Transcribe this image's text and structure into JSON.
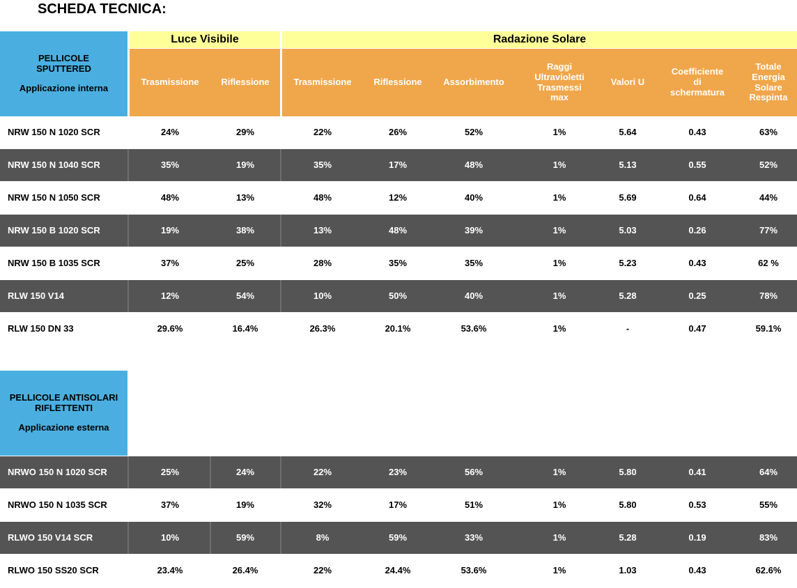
{
  "title": "SCHEDA TECNICA:",
  "section1": {
    "label_lines": [
      "PELLICOLE",
      "SPUTTERED"
    ],
    "sublabel": "Applicazione interna"
  },
  "groups": {
    "luce": "Luce Visibile",
    "radiazione": "Radazione Solare"
  },
  "columns": [
    [
      "Trasmissione"
    ],
    [
      "Riflessione"
    ],
    [
      "Trasmissione"
    ],
    [
      "Riflessione"
    ],
    [
      "Assorbimento"
    ],
    [
      "Raggi",
      "Ultravioletti",
      "Trasmessi",
      "max"
    ],
    [
      "Valori U"
    ],
    [
      "Coefficiente",
      "di",
      "schermatura"
    ],
    [
      "Totale",
      "Energia",
      "Solare",
      "Respinta"
    ]
  ],
  "rows1": [
    [
      "NRW 150 N 1020 SCR",
      "24%",
      "29%",
      "22%",
      "26%",
      "52%",
      "1%",
      "5.64",
      "0.43",
      "63%"
    ],
    [
      "NRW 150 N 1040 SCR",
      "35%",
      "19%",
      "35%",
      "17%",
      "48%",
      "1%",
      "5.13",
      "0.55",
      "52%"
    ],
    [
      "NRW 150 N 1050 SCR",
      "48%",
      "13%",
      "48%",
      "12%",
      "40%",
      "1%",
      "5.69",
      "0.64",
      "44%"
    ],
    [
      "NRW 150 B 1020 SCR",
      "19%",
      "38%",
      "13%",
      "48%",
      "39%",
      "1%",
      "5.03",
      "0.26",
      "77%"
    ],
    [
      "NRW 150 B 1035 SCR",
      "37%",
      "25%",
      "28%",
      "35%",
      "35%",
      "1%",
      "5.23",
      "0.43",
      "62 %"
    ],
    [
      "RLW 150 V14",
      "12%",
      "54%",
      "10%",
      "50%",
      "40%",
      "1%",
      "5.28",
      "0.25",
      "78%"
    ],
    [
      "RLW 150 DN 33",
      "29.6%",
      "16.4%",
      "26.3%",
      "20.1%",
      "53.6%",
      "1%",
      "-",
      "0.47",
      "59.1%"
    ]
  ],
  "section2": {
    "label_lines": [
      "PELLICOLE ANTISOLARI",
      "RIFLETTENTI"
    ],
    "sublabel": "Applicazione esterna"
  },
  "rows2": [
    [
      "NRWO 150 N 1020 SCR",
      "25%",
      "24%",
      "22%",
      "23%",
      "56%",
      "1%",
      "5.80",
      "0.41",
      "64%"
    ],
    [
      "NRWO 150 N 1035 SCR",
      "37%",
      "19%",
      "32%",
      "17%",
      "51%",
      "1%",
      "5.80",
      "0.53",
      "55%"
    ],
    [
      "RLWO 150 V14 SCR",
      "10%",
      "59%",
      "8%",
      "59%",
      "33%",
      "1%",
      "5.28",
      "0.19",
      "83%"
    ],
    [
      "RLWO 150 SS20 SCR",
      "23.4%",
      "26.4%",
      "22%",
      "24.4%",
      "53.6%",
      "1%",
      "1.03",
      "0.43",
      "62.6%"
    ]
  ]
}
